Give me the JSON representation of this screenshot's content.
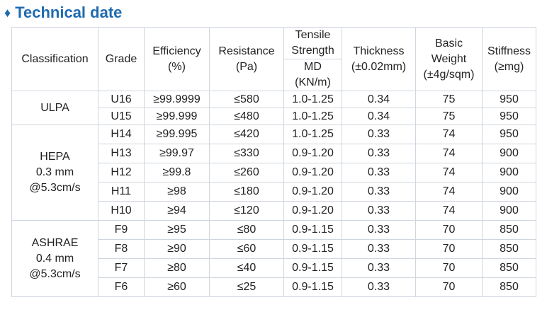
{
  "title": "Technical date",
  "title_icon": "diamond-bullet-icon",
  "accent_color": "#1e6bb0",
  "table": {
    "headers": {
      "classification": "Classification",
      "grade": "Grade",
      "efficiency": [
        "Efficiency",
        "(%)"
      ],
      "resistance": [
        "Resistance",
        "(Pa)"
      ],
      "tensile": [
        "Tensile",
        "Strength"
      ],
      "tensile_sub": [
        "MD",
        "(KN/m)"
      ],
      "thickness": [
        "Thickness",
        "(±0.02mm)"
      ],
      "basic_weight": [
        "Basic",
        "Weight",
        "(±4g/sqm)"
      ],
      "stiffness": [
        "Stiffness",
        "(≥mg)"
      ]
    },
    "groups": [
      {
        "classification": [
          "ULPA"
        ],
        "rows": [
          {
            "grade": "U16",
            "efficiency": "≥99.9999",
            "resistance": "≤580",
            "tensile": "1.0-1.25",
            "thickness": "0.34",
            "weight": "75",
            "stiffness": "950"
          },
          {
            "grade": "U15",
            "efficiency": "≥99.999",
            "resistance": "≤480",
            "tensile": "1.0-1.25",
            "thickness": "0.34",
            "weight": "75",
            "stiffness": "950"
          }
        ]
      },
      {
        "classification": [
          "HEPA",
          "0.3 mm",
          "@5.3cm/s"
        ],
        "rows": [
          {
            "grade": "H14",
            "efficiency": "≥99.995",
            "resistance": "≤420",
            "tensile": "1.0-1.25",
            "thickness": "0.33",
            "weight": "74",
            "stiffness": "950"
          },
          {
            "grade": "H13",
            "efficiency": "≥99.97",
            "resistance": "≤330",
            "tensile": "0.9-1.20",
            "thickness": "0.33",
            "weight": "74",
            "stiffness": "900"
          },
          {
            "grade": "H12",
            "efficiency": "≥99.8",
            "resistance": "≤260",
            "tensile": "0.9-1.20",
            "thickness": "0.33",
            "weight": "74",
            "stiffness": "900"
          },
          {
            "grade": "H11",
            "efficiency": "≥98",
            "resistance": "≤180",
            "tensile": "0.9-1.20",
            "thickness": "0.33",
            "weight": "74",
            "stiffness": "900"
          },
          {
            "grade": "H10",
            "efficiency": "≥94",
            "resistance": "≤120",
            "tensile": "0.9-1.20",
            "thickness": "0.33",
            "weight": "74",
            "stiffness": "900"
          }
        ]
      },
      {
        "classification": [
          "ASHRAE",
          "0.4 mm",
          "@5.3cm/s"
        ],
        "rows": [
          {
            "grade": "F9",
            "efficiency": "≥95",
            "resistance": "≤80",
            "tensile": "0.9-1.15",
            "thickness": "0.33",
            "weight": "70",
            "stiffness": "850"
          },
          {
            "grade": "F8",
            "efficiency": "≥90",
            "resistance": "≤60",
            "tensile": "0.9-1.15",
            "thickness": "0.33",
            "weight": "70",
            "stiffness": "850"
          },
          {
            "grade": "F7",
            "efficiency": "≥80",
            "resistance": "≤40",
            "tensile": "0.9-1.15",
            "thickness": "0.33",
            "weight": "70",
            "stiffness": "850"
          },
          {
            "grade": "F6",
            "efficiency": "≥60",
            "resistance": "≤25",
            "tensile": "0.9-1.15",
            "thickness": "0.33",
            "weight": "70",
            "stiffness": "850"
          }
        ]
      }
    ]
  }
}
